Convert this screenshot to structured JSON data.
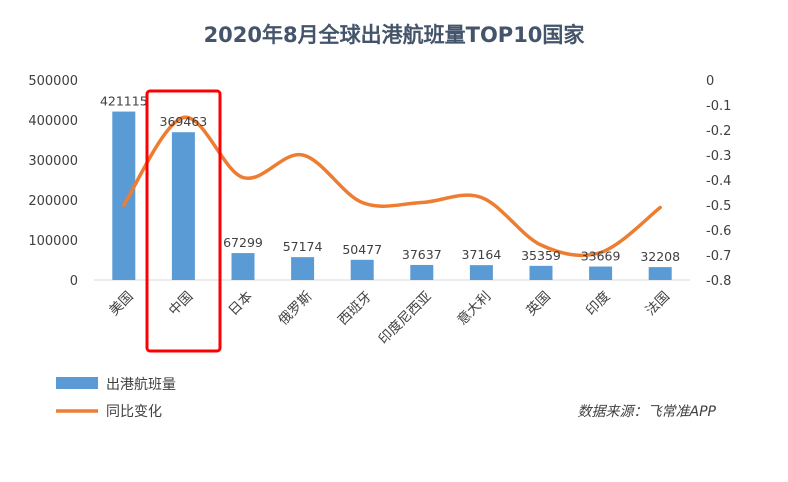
{
  "chart_data": {
    "type": "bar",
    "title": "2020年8月全球出港航班量TOP10国家",
    "categories": [
      "美国",
      "中国",
      "日本",
      "俄罗斯",
      "西班牙",
      "印度尼西亚",
      "意大利",
      "英国",
      "印度",
      "法国"
    ],
    "series": [
      {
        "name": "出港航班量",
        "type": "bar",
        "axis": "left",
        "color": "#5b9bd5",
        "values": [
          421115,
          369463,
          67299,
          57174,
          50477,
          37637,
          37164,
          35359,
          33669,
          32208
        ],
        "labels": [
          "421115",
          "369463",
          "67299",
          "57174",
          "50477",
          "37637",
          "37164",
          "35359",
          "33669",
          "32208"
        ]
      },
      {
        "name": "同比变化",
        "type": "line",
        "axis": "right",
        "color": "#ed7d31",
        "smooth": true,
        "values": [
          -0.5,
          -0.15,
          -0.39,
          -0.3,
          -0.49,
          -0.49,
          -0.47,
          -0.66,
          -0.69,
          -0.51
        ]
      }
    ],
    "y_left": {
      "ylim": [
        0,
        500000
      ],
      "ticks": [
        "0",
        "100000",
        "200000",
        "300000",
        "400000",
        "500000"
      ]
    },
    "y_right": {
      "ylim": [
        -0.8,
        0
      ],
      "ticks": [
        "0",
        "-0.1",
        "-0.2",
        "-0.3",
        "-0.4",
        "-0.5",
        "-0.6",
        "-0.7",
        "-0.8"
      ]
    },
    "grid": false,
    "legend": "bottom-left",
    "highlight": {
      "category": "中国",
      "color": "#ff0000"
    },
    "source": "数据来源：飞常准APP"
  }
}
